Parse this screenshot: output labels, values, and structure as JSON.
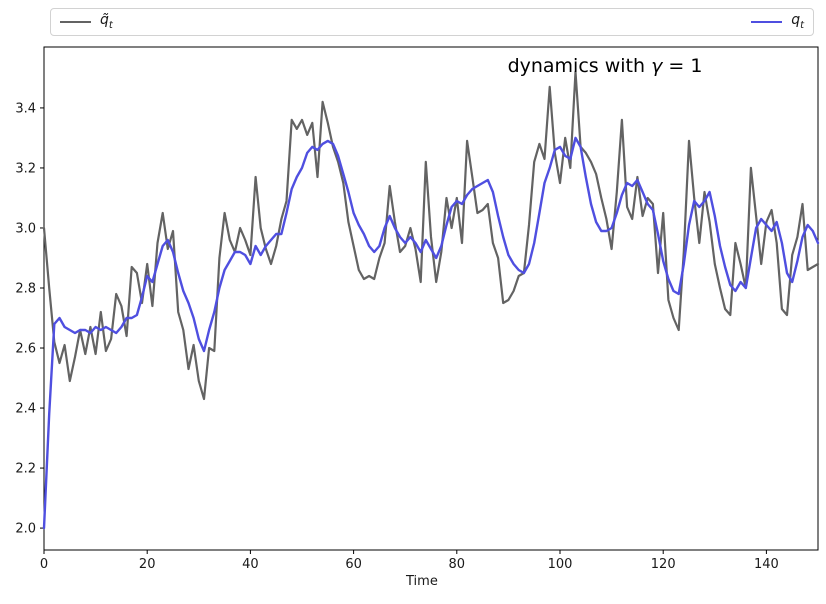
{
  "figure": {
    "background": "#ffffff",
    "title": {
      "prefix": "dynamics with ",
      "gamma": "γ",
      "suffix": " = 1"
    },
    "xlabel": "Time"
  },
  "legend": {
    "entries": [
      {
        "id": "q-tilde",
        "label_main": "q̃",
        "label_sub": "t",
        "color": "#636363"
      },
      {
        "id": "q",
        "label_main": "q",
        "label_sub": "t",
        "color": "#4f4fe0"
      }
    ]
  },
  "chart_data": {
    "type": "line",
    "title": "dynamics with γ = 1",
    "xlabel": "Time",
    "ylabel": "",
    "xlim": [
      0,
      150
    ],
    "ylim": [
      1.927,
      3.603
    ],
    "xticks": [
      0,
      20,
      40,
      60,
      80,
      100,
      120,
      140
    ],
    "yticks": [
      2.0,
      2.2,
      2.4,
      2.6,
      2.8,
      3.0,
      3.2,
      3.4
    ],
    "grid": false,
    "legend_position": "top-expanded",
    "x_start": 0,
    "x_step": 1,
    "series": [
      {
        "name": "q̃_t",
        "color": "#636363",
        "linewidth": 2.2,
        "values": [
          3.0,
          2.8,
          2.62,
          2.55,
          2.61,
          2.49,
          2.57,
          2.66,
          2.58,
          2.67,
          2.58,
          2.72,
          2.59,
          2.63,
          2.78,
          2.74,
          2.64,
          2.87,
          2.85,
          2.75,
          2.88,
          2.74,
          2.95,
          3.05,
          2.93,
          2.99,
          2.72,
          2.66,
          2.53,
          2.61,
          2.49,
          2.43,
          2.6,
          2.59,
          2.9,
          3.05,
          2.96,
          2.92,
          3.0,
          2.96,
          2.91,
          3.17,
          3.0,
          2.93,
          2.88,
          2.94,
          3.03,
          3.09,
          3.36,
          3.33,
          3.36,
          3.31,
          3.35,
          3.17,
          3.42,
          3.35,
          3.27,
          3.22,
          3.15,
          3.02,
          2.94,
          2.86,
          2.83,
          2.84,
          2.83,
          2.9,
          2.95,
          3.14,
          3.02,
          2.92,
          2.94,
          3.0,
          2.93,
          2.82,
          3.22,
          2.97,
          2.82,
          2.92,
          3.1,
          3.0,
          3.1,
          2.95,
          3.29,
          3.17,
          3.05,
          3.06,
          3.08,
          2.95,
          2.9,
          2.75,
          2.76,
          2.79,
          2.84,
          2.85,
          3.01,
          3.22,
          3.28,
          3.23,
          3.47,
          3.25,
          3.15,
          3.3,
          3.2,
          3.52,
          3.27,
          3.25,
          3.22,
          3.18,
          3.1,
          3.03,
          2.93,
          3.12,
          3.36,
          3.07,
          3.03,
          3.17,
          3.04,
          3.1,
          3.08,
          2.85,
          3.05,
          2.76,
          2.7,
          2.66,
          2.92,
          3.29,
          3.1,
          2.95,
          3.12,
          3.02,
          2.88,
          2.8,
          2.73,
          2.71,
          2.95,
          2.88,
          2.8,
          3.2,
          3.04,
          2.88,
          3.02,
          3.06,
          2.95,
          2.73,
          2.71,
          2.91,
          2.97,
          3.08,
          2.86,
          2.87,
          2.88
        ]
      },
      {
        "name": "q_t",
        "color": "#4f4fe0",
        "linewidth": 2.4,
        "values": [
          2.0,
          2.38,
          2.68,
          2.7,
          2.67,
          2.66,
          2.65,
          2.66,
          2.66,
          2.65,
          2.67,
          2.66,
          2.67,
          2.66,
          2.65,
          2.67,
          2.7,
          2.7,
          2.71,
          2.77,
          2.84,
          2.82,
          2.88,
          2.94,
          2.96,
          2.92,
          2.85,
          2.79,
          2.75,
          2.7,
          2.63,
          2.59,
          2.66,
          2.72,
          2.8,
          2.86,
          2.89,
          2.92,
          2.92,
          2.91,
          2.88,
          2.94,
          2.91,
          2.94,
          2.96,
          2.98,
          2.98,
          3.05,
          3.13,
          3.17,
          3.2,
          3.25,
          3.27,
          3.26,
          3.28,
          3.29,
          3.28,
          3.24,
          3.18,
          3.12,
          3.05,
          3.01,
          2.98,
          2.94,
          2.92,
          2.94,
          3.0,
          3.04,
          3.0,
          2.97,
          2.95,
          2.97,
          2.95,
          2.92,
          2.96,
          2.93,
          2.9,
          2.94,
          3.01,
          3.07,
          3.09,
          3.08,
          3.11,
          3.13,
          3.14,
          3.15,
          3.16,
          3.12,
          3.04,
          2.97,
          2.91,
          2.88,
          2.86,
          2.85,
          2.88,
          2.95,
          3.05,
          3.15,
          3.2,
          3.26,
          3.27,
          3.24,
          3.23,
          3.3,
          3.27,
          3.17,
          3.08,
          3.02,
          2.99,
          2.99,
          3.0,
          3.05,
          3.11,
          3.15,
          3.14,
          3.16,
          3.12,
          3.08,
          3.06,
          2.98,
          2.89,
          2.83,
          2.79,
          2.78,
          2.88,
          3.01,
          3.09,
          3.07,
          3.09,
          3.12,
          3.04,
          2.94,
          2.87,
          2.81,
          2.79,
          2.82,
          2.8,
          2.9,
          3.0,
          3.03,
          3.01,
          2.99,
          3.02,
          2.95,
          2.85,
          2.82,
          2.89,
          2.97,
          3.01,
          2.99,
          2.95
        ]
      }
    ]
  }
}
